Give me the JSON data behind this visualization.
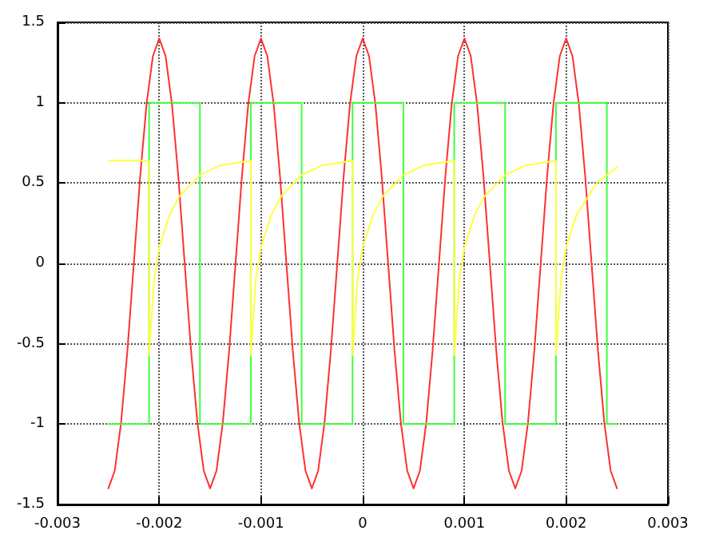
{
  "chart_data": {
    "type": "line",
    "xlim": [
      -0.003,
      0.003
    ],
    "ylim": [
      -1.5,
      1.5
    ],
    "xticks": [
      -0.003,
      -0.002,
      -0.001,
      0,
      0.001,
      0.002,
      0.003
    ],
    "yticks": [
      -1.5,
      -1,
      -0.5,
      0,
      0.5,
      1,
      1.5
    ],
    "grid": true,
    "marker": "none",
    "line_style": "solid",
    "series": [
      {
        "color": "#ff3030",
        "x": [
          -0.0025,
          -0.0024375,
          -0.002375,
          -0.0023125,
          -0.00225,
          -0.0021875,
          -0.002125,
          -0.0020625,
          -0.002,
          -0.0019375,
          -0.001875,
          -0.0018125,
          -0.00175,
          -0.0016875,
          -0.001625,
          -0.0015625,
          -0.0015,
          -0.0014375,
          -0.001375,
          -0.0013125,
          -0.00125,
          -0.0011875,
          -0.001125,
          -0.0010625,
          -0.001,
          -0.0009375,
          -0.000875,
          -0.0008125,
          -0.00075,
          -0.0006875,
          -0.000625,
          -0.0005625,
          -0.0005,
          -0.0004375,
          -0.000375,
          -0.0003125,
          -0.00025,
          -0.0001875,
          -0.000125,
          -6.25e-05,
          0,
          6.25e-05,
          0.000125,
          0.0001875,
          0.00025,
          0.0003125,
          0.000375,
          0.0004375,
          0.0005,
          0.0005625,
          0.000625,
          0.0006875,
          0.00075,
          0.0008125,
          0.000875,
          0.0009375,
          0.001,
          0.0010625,
          0.001125,
          0.0011875,
          0.00125,
          0.0013125,
          0.001375,
          0.0014375,
          0.0015,
          0.0015625,
          0.001625,
          0.0016875,
          0.00175,
          0.0018125,
          0.001875,
          0.0019375,
          0.002,
          0.0020625,
          0.002125,
          0.0021875,
          0.00225,
          0.0023125,
          0.002375,
          0.0024375,
          0.0025
        ],
        "values": [
          -1.4,
          -1.29,
          -0.99,
          -0.54,
          0,
          0.54,
          0.99,
          1.29,
          1.4,
          1.29,
          0.99,
          0.54,
          0,
          -0.54,
          -0.99,
          -1.29,
          -1.4,
          -1.29,
          -0.99,
          -0.54,
          0,
          0.54,
          0.99,
          1.29,
          1.4,
          1.29,
          0.99,
          0.54,
          0,
          -0.54,
          -0.99,
          -1.29,
          -1.4,
          -1.29,
          -0.99,
          -0.54,
          0,
          0.54,
          0.99,
          1.29,
          1.4,
          1.29,
          0.99,
          0.54,
          0,
          -0.54,
          -0.99,
          -1.29,
          -1.4,
          -1.29,
          -0.99,
          -0.54,
          0,
          0.54,
          0.99,
          1.29,
          1.4,
          1.29,
          0.99,
          0.54,
          0,
          -0.54,
          -0.99,
          -1.29,
          -1.4,
          -1.29,
          -0.99,
          -0.54,
          0,
          0.54,
          0.99,
          1.29,
          1.4,
          1.29,
          0.99,
          0.54,
          0,
          -0.54,
          -0.99,
          -1.29,
          -1.4
        ]
      },
      {
        "color": "#40ff40",
        "x": [
          -0.0025,
          -0.0021,
          -0.0021,
          -0.0016,
          -0.0016,
          -0.0011,
          -0.0011,
          -0.0006,
          -0.0006,
          -0.0001,
          -0.0001,
          0.0004,
          0.0004,
          0.0009,
          0.0009,
          0.0014,
          0.0014,
          0.0019,
          0.0019,
          0.0024,
          0.0024,
          0.0025
        ],
        "values": [
          -1,
          -1,
          1,
          1,
          -1,
          -1,
          1,
          1,
          -1,
          -1,
          1,
          1,
          -1,
          -1,
          1,
          1,
          -1,
          -1,
          1,
          1,
          -1,
          -1
        ]
      },
      {
        "color": "#ffff40",
        "x": [
          -0.0025,
          -0.0021,
          -0.0021,
          -0.00205,
          -0.002,
          -0.0019,
          -0.0018,
          -0.0016,
          -0.0014,
          -0.0011,
          -0.0011,
          -0.00105,
          -0.001,
          -0.0009,
          -0.0008,
          -0.0006,
          -0.0004,
          -0.0001,
          -0.0001,
          -5e-05,
          0,
          0.0001,
          0.0002,
          0.0004,
          0.0006,
          0.0009,
          0.0009,
          0.00095,
          0.001,
          0.0011,
          0.0012,
          0.0014,
          0.0016,
          0.0019,
          0.0019,
          0.00195,
          0.002,
          0.0021,
          0.0022,
          0.0023,
          0.0024,
          0.0025
        ],
        "values": [
          0.64,
          0.64,
          -0.57,
          -0.1,
          0.1,
          0.3,
          0.42,
          0.55,
          0.61,
          0.64,
          -0.57,
          -0.1,
          0.1,
          0.3,
          0.42,
          0.55,
          0.61,
          0.64,
          -0.57,
          -0.1,
          0.1,
          0.3,
          0.42,
          0.55,
          0.61,
          0.64,
          -0.57,
          -0.1,
          0.1,
          0.3,
          0.42,
          0.55,
          0.61,
          0.64,
          -0.57,
          -0.1,
          0.1,
          0.3,
          0.4,
          0.5,
          0.55,
          0.6
        ]
      }
    ]
  }
}
